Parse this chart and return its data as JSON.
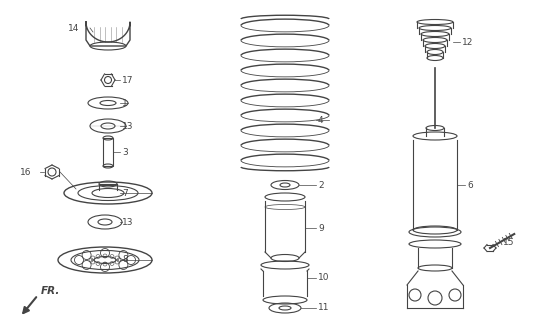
{
  "bg_color": "#ffffff",
  "line_color": "#444444",
  "fig_w": 5.35,
  "fig_h": 3.2,
  "dpi": 100
}
